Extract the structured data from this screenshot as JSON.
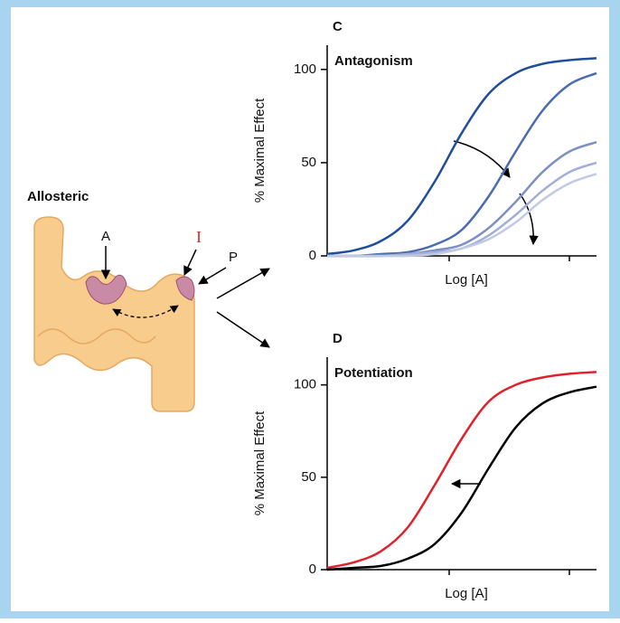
{
  "diagram": {
    "title": "Allosteric",
    "site_a": "A",
    "site_i": "I",
    "site_p": "P"
  },
  "chart_data": [
    {
      "type": "line",
      "panel": "C",
      "title": "Antagonism",
      "xlabel": "Log [A]",
      "ylabel": "% Maximal Effect",
      "x": [
        0,
        1,
        2,
        3,
        4,
        5,
        6,
        7,
        8,
        9,
        10
      ],
      "xlim": [
        0,
        10
      ],
      "ylim": [
        0,
        113
      ],
      "yticks": [
        0,
        50,
        100
      ],
      "series": [
        {
          "color": "#1f4e9c",
          "values": [
            1,
            3,
            8,
            19,
            40,
            66,
            87,
            98,
            103,
            105,
            106
          ]
        },
        {
          "color": "#4a6cb0",
          "values": [
            0,
            0,
            1,
            2,
            6,
            14,
            32,
            56,
            78,
            92,
            98
          ]
        },
        {
          "color": "#7d8fc4",
          "values": [
            0,
            0,
            0,
            1,
            3,
            6,
            15,
            29,
            45,
            56,
            61
          ]
        },
        {
          "color": "#a3afd6",
          "values": [
            0,
            0,
            0,
            1,
            2,
            4,
            11,
            22,
            35,
            45,
            50
          ]
        },
        {
          "color": "#c2c9e4",
          "values": [
            0,
            0,
            0,
            0,
            1,
            4,
            9,
            18,
            30,
            39,
            44
          ]
        }
      ]
    },
    {
      "type": "line",
      "panel": "D",
      "title": "Potentiation",
      "xlabel": "Log [A]",
      "ylabel": "% Maximal Effect",
      "x": [
        0,
        1,
        2,
        3,
        4,
        5,
        6,
        7,
        8,
        9,
        10
      ],
      "xlim": [
        0,
        10
      ],
      "ylim": [
        0,
        115
      ],
      "yticks": [
        0,
        50,
        100
      ],
      "series": [
        {
          "color": "#e0202a",
          "values": [
            1,
            4,
            10,
            23,
            46,
            71,
            91,
            100,
            104,
            106,
            107
          ]
        },
        {
          "color": "#000000",
          "values": [
            0,
            1,
            2,
            6,
            14,
            31,
            55,
            77,
            90,
            96,
            99
          ]
        }
      ]
    }
  ]
}
